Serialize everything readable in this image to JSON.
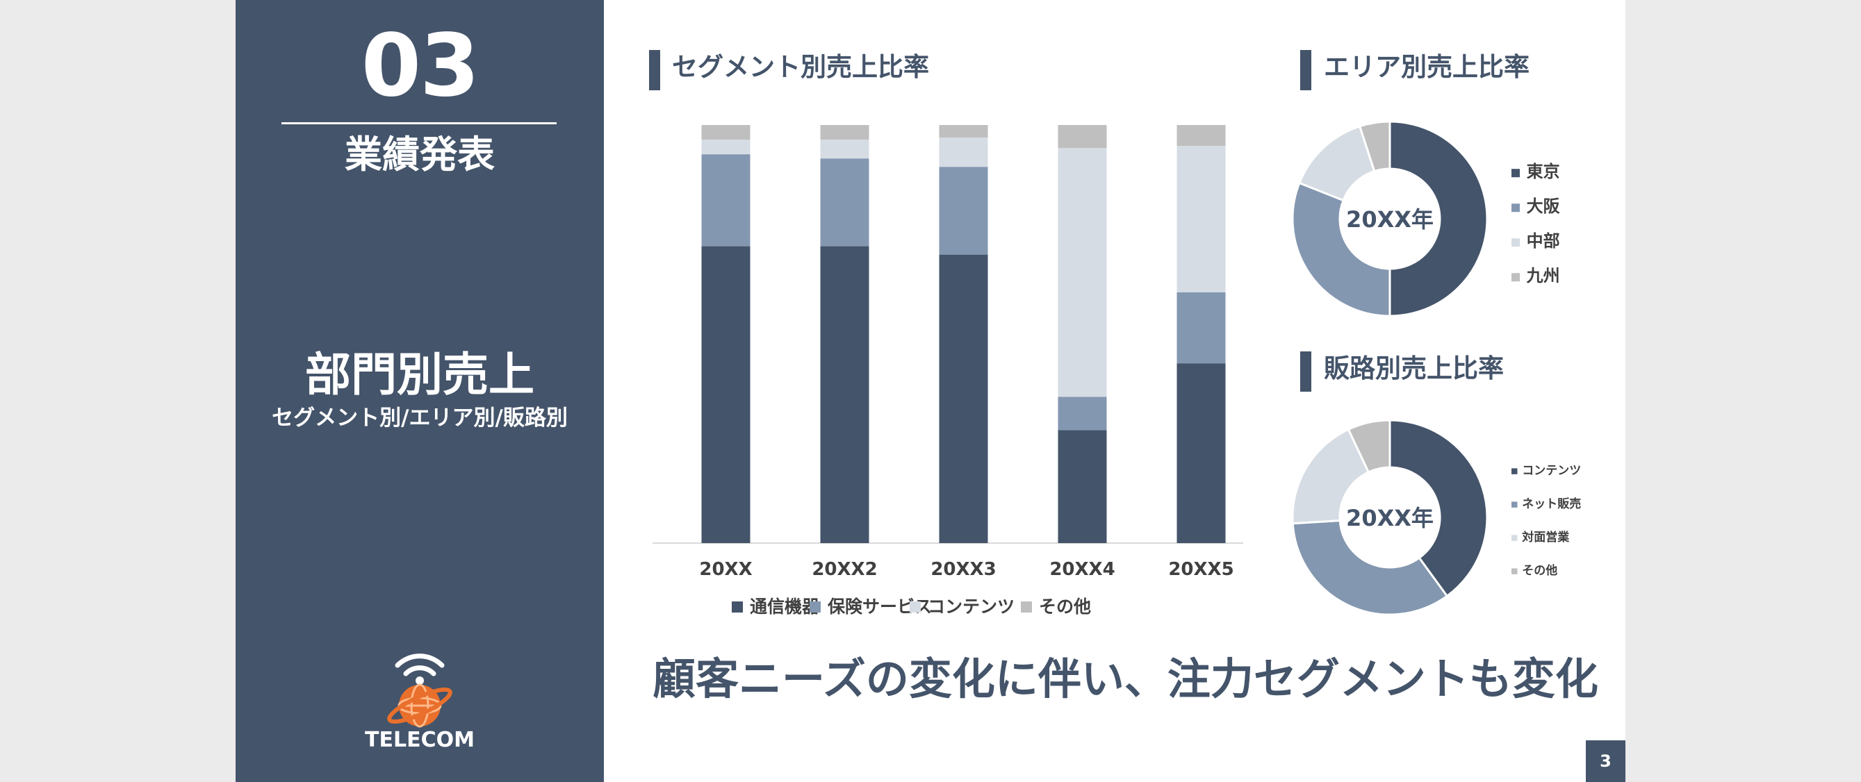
{
  "side_panel": {
    "section_number": "03",
    "section_title": "業績発表",
    "department_title": "部門別売上",
    "department_subtitle": "セグメント別/エリア別/販路別",
    "logo_icon": "wifi-globe-icon",
    "logo_text": "TELECOM"
  },
  "colors": {
    "navy": "#44546a",
    "steel_blue": "#8497b0",
    "light_gray_blue": "#d6dce4",
    "gray": "#bfbfbf"
  },
  "headline": "顧客ニーズの変化に伴い、注力セグメントも変化",
  "page_number": "3",
  "chart_data": [
    {
      "type": "bar",
      "stacked": true,
      "normalized_100": true,
      "title": "セグメント別売上比率",
      "categories": [
        "20XX",
        "20XX2",
        "20XX3",
        "20XX4",
        "20XX5"
      ],
      "series": [
        {
          "name": "通信機器",
          "color": "#44546a",
          "values": [
            71,
            71,
            69,
            27,
            43
          ]
        },
        {
          "name": "保険サービス",
          "color": "#8497b0",
          "values": [
            22,
            21,
            21,
            8,
            17
          ]
        },
        {
          "name": "コンテンツ",
          "color": "#d6dce4",
          "values": [
            3.5,
            4.5,
            7,
            59.5,
            35
          ]
        },
        {
          "name": "その他",
          "color": "#bfbfbf",
          "values": [
            3.5,
            3.5,
            3,
            5.5,
            5
          ]
        }
      ],
      "legend": "bottom",
      "grid": false
    },
    {
      "type": "pie",
      "donut": true,
      "title": "エリア別売上比率",
      "center_label": "20XX年",
      "slices": [
        {
          "name": "東京",
          "color": "#44546a",
          "value": 50
        },
        {
          "name": "大阪",
          "color": "#8497b0",
          "value": 31
        },
        {
          "name": "中部",
          "color": "#d6dce4",
          "value": 14
        },
        {
          "name": "九州",
          "color": "#bfbfbf",
          "value": 5
        }
      ],
      "legend": "right"
    },
    {
      "type": "pie",
      "donut": true,
      "title": "販路別売上比率",
      "center_label": "20XX年",
      "slices": [
        {
          "name": "コンテンツ",
          "color": "#44546a",
          "value": 40
        },
        {
          "name": "ネット販売",
          "color": "#8497b0",
          "value": 34
        },
        {
          "name": "対面営業",
          "color": "#d6dce4",
          "value": 19
        },
        {
          "name": "その他",
          "color": "#bfbfbf",
          "value": 7
        }
      ],
      "legend": "right"
    }
  ]
}
